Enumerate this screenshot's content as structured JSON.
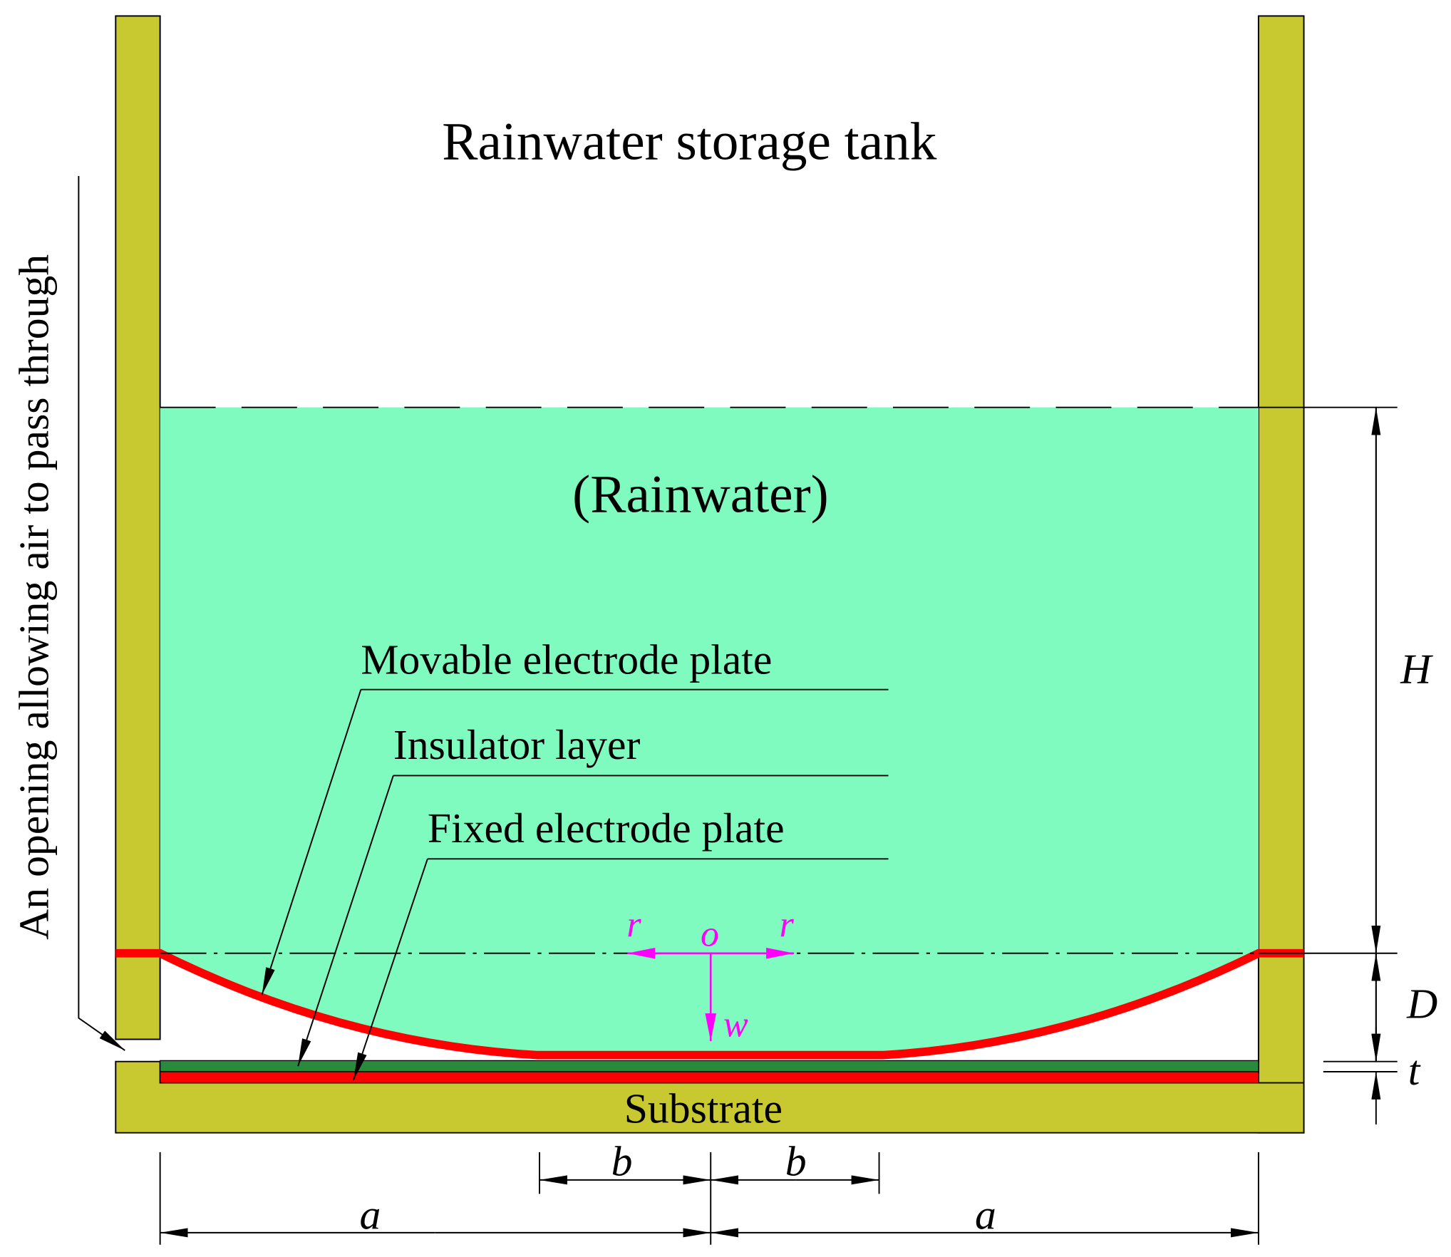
{
  "title": "Rainwater storage tank",
  "water_label": "(Rainwater)",
  "layers": {
    "movable": "Movable electrode plate",
    "insulator": "Insulator layer",
    "fixed": "Fixed electrode plate",
    "substrate": "Substrate"
  },
  "opening_label": "An opening allowing air to pass through",
  "dimensions": {
    "H": "H",
    "D": "D",
    "t": "t",
    "a_left": "a",
    "a_right": "a",
    "b_left": "b",
    "b_right": "b"
  },
  "axes": {
    "r_left": "r",
    "origin": "o",
    "r_right": "r",
    "w": "w"
  }
}
